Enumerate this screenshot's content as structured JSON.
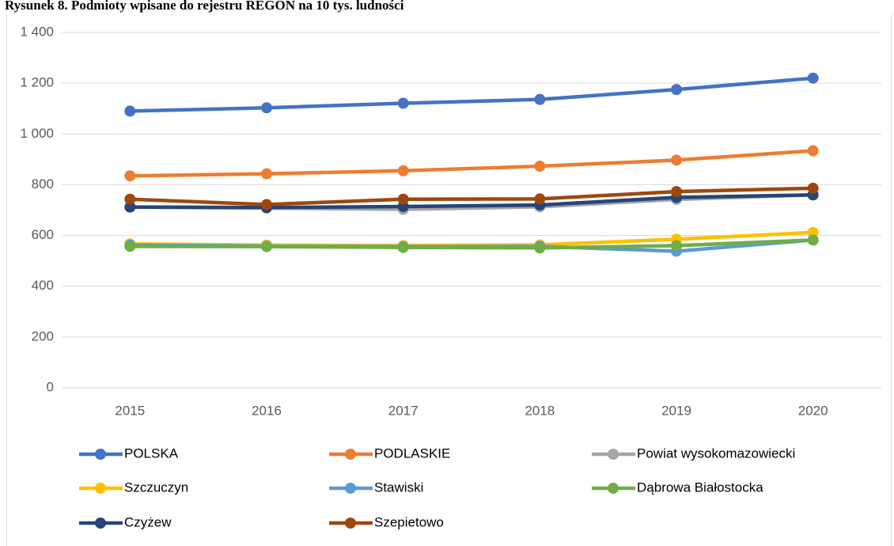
{
  "chart_data": {
    "type": "line",
    "title": "Rysunek 8. Podmioty wpisane do rejestru REGON na 10 tys. ludności",
    "categories": [
      "2015",
      "2016",
      "2017",
      "2018",
      "2019",
      "2020"
    ],
    "series": [
      {
        "name": "POLSKA",
        "color": "#4472c4",
        "values": [
          1090,
          1103,
          1121,
          1136,
          1175,
          1220
        ]
      },
      {
        "name": "PODLASKIE",
        "color": "#ed7d31",
        "values": [
          835,
          843,
          855,
          873,
          897,
          934
        ]
      },
      {
        "name": "Powiat wysokomazowiecki",
        "color": "#a5a5a5",
        "values": [
          712,
          708,
          703,
          713,
          742,
          760
        ]
      },
      {
        "name": "Szczuczyn",
        "color": "#ffc000",
        "values": [
          567,
          562,
          560,
          563,
          585,
          612
        ]
      },
      {
        "name": "Stawiski",
        "color": "#5b9bd5",
        "values": [
          562,
          558,
          556,
          557,
          538,
          582
        ]
      },
      {
        "name": "Dąbrowa Białostocka",
        "color": "#70ad47",
        "values": [
          557,
          556,
          553,
          551,
          560,
          582
        ]
      },
      {
        "name": "Czyżew",
        "color": "#264478",
        "values": [
          712,
          710,
          714,
          720,
          750,
          760
        ]
      },
      {
        "name": "Szepietowo",
        "color": "#9e480e",
        "values": [
          743,
          722,
          743,
          744,
          773,
          786
        ]
      }
    ],
    "ylim": [
      0,
      1400
    ],
    "yticks": [
      0,
      200,
      400,
      600,
      800,
      {
        "value": 1000,
        "label": "1 000"
      },
      {
        "value": 1200,
        "label": "1 200"
      },
      {
        "value": 1400,
        "label": "1 400"
      }
    ],
    "grid": true,
    "legend": "bottom"
  }
}
